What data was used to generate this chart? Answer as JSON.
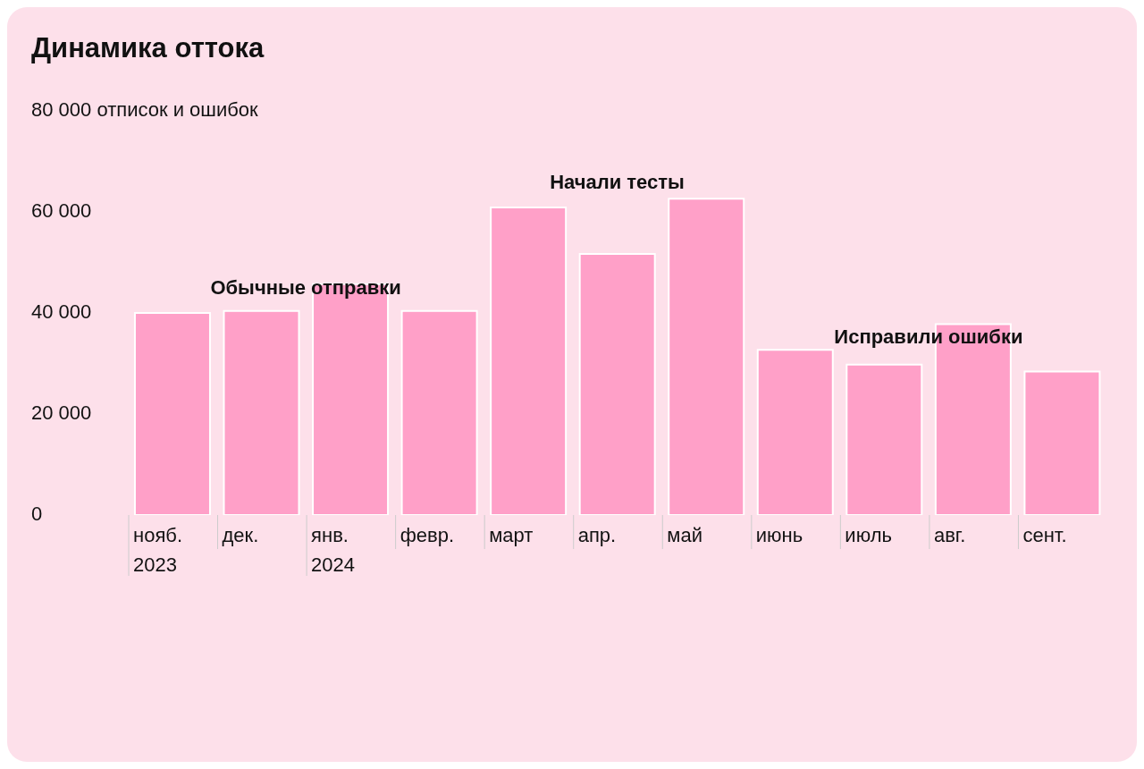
{
  "chart_data": {
    "type": "bar",
    "title": "Динамика оттока",
    "categories": [
      "нояб.\n2023",
      "дек.",
      "янв.\n2024",
      "февр.",
      "март",
      "апр.",
      "май",
      "июнь",
      "июль",
      "авг.",
      "сент."
    ],
    "values": [
      40000,
      40400,
      45700,
      40400,
      60900,
      51700,
      62600,
      32700,
      29800,
      37800,
      28400
    ],
    "color": "#ffa0c8",
    "ylim": [
      0,
      80000
    ],
    "yticks": [
      0,
      20000,
      40000,
      60000,
      {
        "value": 80000,
        "label": "80 000 отписок и ошибок"
      }
    ],
    "annotations": [
      "Обычные отправки",
      "Начали тесты",
      "Исправили ошибки"
    ]
  }
}
